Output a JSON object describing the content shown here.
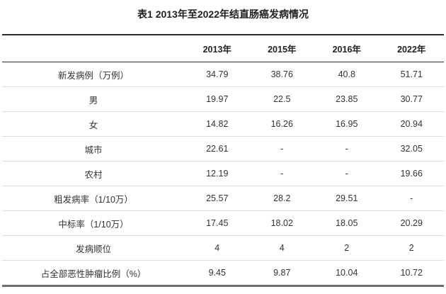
{
  "page": {
    "title": "表1 2013年至2022年结直肠癌发病情况",
    "colors": {
      "top_border": "#2b2b2b",
      "header_underline": "#2b2b2b",
      "row_divider": "#dedede",
      "bottom_border": "#6e6e6e",
      "text": "#333333"
    }
  },
  "table": {
    "header": [
      "2013年",
      "2015年",
      "2016年",
      "2022年"
    ],
    "rows": [
      {
        "label": "新发病例（万例）",
        "values": [
          "34.79",
          "38.76",
          "40.8",
          "51.71"
        ]
      },
      {
        "label": "男",
        "values": [
          "19.97",
          "22.5",
          "23.85",
          "30.77"
        ]
      },
      {
        "label": "女",
        "values": [
          "14.82",
          "16.26",
          "16.95",
          "20.94"
        ]
      },
      {
        "label": "城市",
        "values": [
          "22.61",
          "-",
          "-",
          "32.05"
        ]
      },
      {
        "label": "农村",
        "values": [
          "12.19",
          "-",
          "-",
          "19.66"
        ]
      },
      {
        "label": "粗发病率（1/10万）",
        "values": [
          "25.57",
          "28.2",
          "29.51",
          "-"
        ]
      },
      {
        "label": "中标率（1/10万）",
        "values": [
          "17.45",
          "18.02",
          "18.05",
          "20.29"
        ]
      },
      {
        "label": "发病顺位",
        "values": [
          "4",
          "4",
          "2",
          "2"
        ]
      },
      {
        "label": "占全部恶性肿瘤比例（%）",
        "values": [
          "9.45",
          "9.87",
          "10.04",
          "10.72"
        ]
      }
    ]
  }
}
